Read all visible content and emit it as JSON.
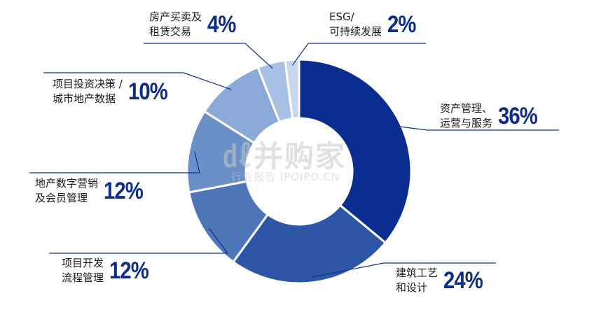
{
  "chart_data": {
    "type": "pie",
    "variant": "donut",
    "slices": [
      {
        "label": "资产管理、\n运营与服务",
        "value": 36,
        "value_label": "36%",
        "color": "#0a2d8f"
      },
      {
        "label": "建筑工艺\n和设计",
        "value": 24,
        "value_label": "24%",
        "color": "#2d56a6"
      },
      {
        "label": "项目开发\n流程管理",
        "value": 12,
        "value_label": "12%",
        "color": "#4f76b8"
      },
      {
        "label": "地产数字营销\n及会员管理",
        "value": 12,
        "value_label": "12%",
        "color": "#6b8fc7"
      },
      {
        "label": "项目投资决策 /\n城市地产数据",
        "value": 10,
        "value_label": "10%",
        "color": "#8aa9d8"
      },
      {
        "label": "房产买卖及\n租赁交易",
        "value": 4,
        "value_label": "4%",
        "color": "#a8c0e4"
      },
      {
        "label": "ESG/\n可持续发展",
        "value": 2,
        "value_label": "2%",
        "color": "#c8d6ee"
      }
    ],
    "leader_color": "#0d2d8c"
  },
  "watermark": {
    "main": "㎗并购家",
    "sub": "行业报告 IPOIPO.CN"
  }
}
